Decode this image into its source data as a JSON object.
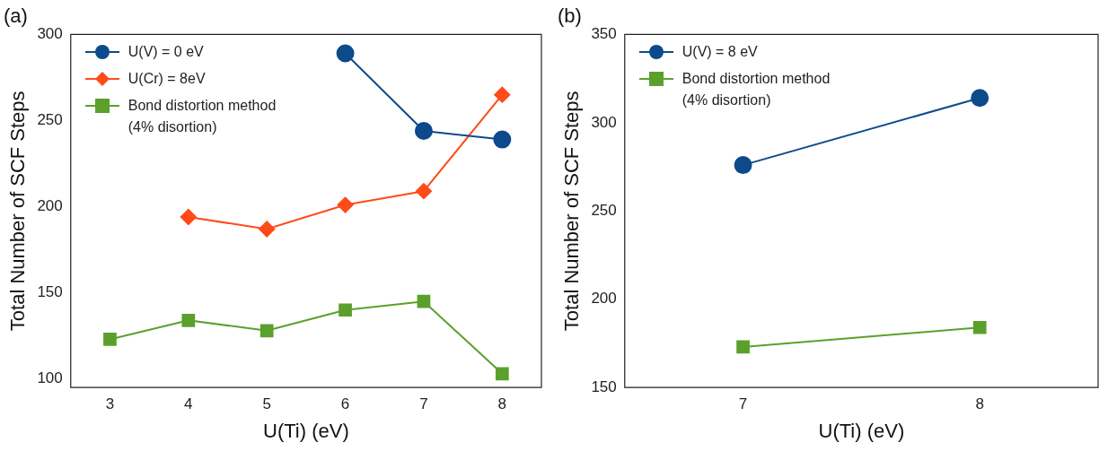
{
  "chart_data": [
    {
      "type": "line",
      "title": "(a)",
      "xlabel": "U(Ti) (eV)",
      "ylabel": "Total Number of SCF Steps",
      "xlim": [
        2.5,
        8.5
      ],
      "xticks": [
        3,
        4,
        5,
        6,
        7,
        8
      ],
      "ylim": [
        95,
        300
      ],
      "yticks": [
        100,
        150,
        200,
        250,
        300
      ],
      "legend": "top left",
      "grid": false,
      "line_style": "solid",
      "series": [
        {
          "name": "U(V) = 0 eV",
          "color": "#0d4a8c",
          "marker": "circle",
          "x": [
            6,
            7,
            8
          ],
          "values": [
            289,
            244,
            239
          ]
        },
        {
          "name": "U(Cr) = 8eV",
          "color": "#ff4a1a",
          "marker": "diamond",
          "x": [
            4,
            5,
            6,
            7,
            8
          ],
          "values": [
            194,
            187,
            201,
            209,
            265
          ]
        },
        {
          "name": "Bond distortion method\n(4% disortion)",
          "color": "#5ba02c",
          "marker": "square",
          "x": [
            3,
            4,
            5,
            6,
            7,
            8
          ],
          "values": [
            123,
            134,
            128,
            140,
            145,
            103
          ]
        }
      ]
    },
    {
      "type": "line",
      "title": "(b)",
      "xlabel": "U(Ti) (eV)",
      "ylabel": "Total Number of SCF Steps",
      "xlim": [
        6.5,
        8.5
      ],
      "xticks": [
        7,
        8
      ],
      "ylim": [
        150,
        350
      ],
      "yticks": [
        150,
        200,
        250,
        300,
        350
      ],
      "legend": "top left",
      "grid": false,
      "line_style": "solid",
      "series": [
        {
          "name": "U(V) = 8 eV",
          "color": "#0d4a8c",
          "marker": "circle",
          "x": [
            7,
            8
          ],
          "values": [
            276,
            314
          ]
        },
        {
          "name": "Bond distortion method\n(4% disortion)",
          "color": "#5ba02c",
          "marker": "square",
          "x": [
            7,
            8
          ],
          "values": [
            173,
            184
          ]
        }
      ]
    }
  ]
}
